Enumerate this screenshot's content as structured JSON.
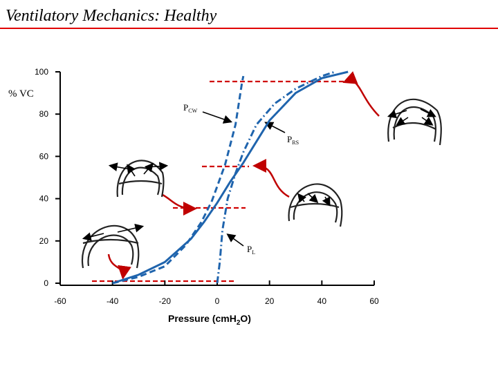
{
  "title": "Ventilatory Mechanics: Healthy",
  "chart_data": {
    "type": "line",
    "ylabel": "% VC",
    "xlabel": {
      "text": "Pressure (cmH",
      "sub": "2",
      "after": "O)"
    },
    "xlim": [
      -60,
      60
    ],
    "xticks": [
      -60,
      -40,
      -20,
      0,
      20,
      40,
      60
    ],
    "ylim": [
      0,
      100
    ],
    "yticks": [
      0,
      20,
      40,
      60,
      80,
      100
    ],
    "series": [
      {
        "name": {
          "text": "P",
          "sub": "CW"
        },
        "color": "#1f64ad",
        "style": "dashed",
        "x": [
          -40,
          -30,
          -20,
          -12,
          -6,
          -2,
          3,
          7,
          9.5,
          10
        ],
        "values": [
          0,
          3,
          8,
          18,
          29,
          39,
          56,
          75,
          95,
          98
        ]
      },
      {
        "name": {
          "text": "P",
          "sub": "RS"
        },
        "color": "#1f64ad",
        "style": "solid",
        "x": [
          -40,
          -30,
          -20,
          -10,
          -5,
          0,
          5,
          10,
          20,
          30,
          40,
          50
        ],
        "values": [
          0,
          4,
          10,
          21,
          29,
          38,
          48,
          57,
          77,
          90,
          97,
          100
        ]
      },
      {
        "name": {
          "text": "P",
          "sub": "L"
        },
        "color": "#1f64ad",
        "style": "dashdot",
        "x": [
          0,
          1,
          2,
          4,
          7,
          10,
          15,
          22,
          30,
          40,
          45
        ],
        "values": [
          0,
          10,
          25,
          40,
          52,
          62,
          75,
          85,
          92,
          98,
          100
        ]
      }
    ]
  }
}
